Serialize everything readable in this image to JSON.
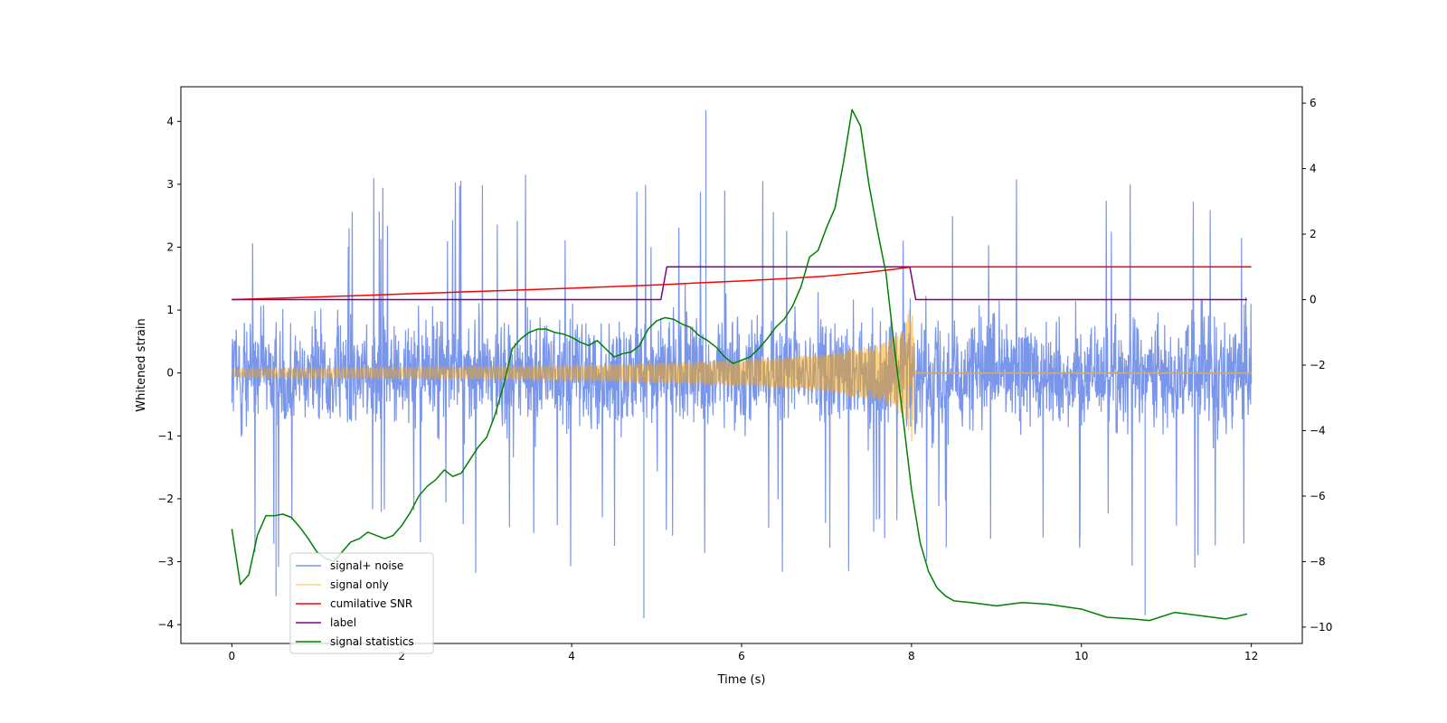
{
  "chart_data": {
    "type": "line",
    "title": "",
    "xlabel": "Time (s)",
    "ylabel_left": "Whitened strain",
    "ylabel_right": "",
    "xlim": [
      -0.6,
      12.6
    ],
    "ylim_left": [
      -4.3,
      4.55
    ],
    "ylim_right": [
      -10.5,
      6.5
    ],
    "x_ticks": [
      0,
      2,
      4,
      6,
      8,
      10,
      12
    ],
    "x_tick_labels": [
      "0",
      "2",
      "4",
      "6",
      "8",
      "10",
      "12"
    ],
    "y_left_ticks": [
      -4,
      -3,
      -2,
      -1,
      0,
      1,
      2,
      3,
      4
    ],
    "y_left_tick_labels": [
      "−4",
      "−3",
      "−2",
      "−1",
      "0",
      "1",
      "2",
      "3",
      "4"
    ],
    "y_right_ticks": [
      -10,
      -8,
      -6,
      -4,
      -2,
      0,
      2,
      4,
      6
    ],
    "y_right_tick_labels": [
      "−10",
      "−8",
      "−6",
      "−4",
      "−2",
      "0",
      "2",
      "4",
      "6"
    ],
    "legend_position": "bottom-left",
    "series": [
      {
        "name": "signal+ noise",
        "axis": "left",
        "color": "#4169e1",
        "opacity": 0.7,
        "kind": "noise",
        "x_range": [
          0,
          12
        ],
        "typical_range": [
          -2.0,
          2.0
        ],
        "extremes": [
          [
            1.38,
            2.3
          ],
          [
            5.58,
            4.18
          ],
          [
            4.85,
            -3.9
          ],
          [
            10.75,
            -3.85
          ],
          [
            0.52,
            -3.55
          ]
        ]
      },
      {
        "name": "signal only",
        "axis": "left",
        "color": "#ffa500",
        "opacity": 0.5,
        "kind": "chirp",
        "t_merge": 8.0,
        "amplitude_envelope": [
          [
            0,
            0.07
          ],
          [
            2,
            0.09
          ],
          [
            4,
            0.12
          ],
          [
            6,
            0.2
          ],
          [
            7,
            0.3
          ],
          [
            7.6,
            0.45
          ],
          [
            7.9,
            0.65
          ],
          [
            8.0,
            1.15
          ],
          [
            8.05,
            0.0
          ],
          [
            12,
            0.0
          ]
        ]
      },
      {
        "name": "cumilative SNR",
        "axis": "right",
        "color": "#ff0000",
        "x": [
          0,
          1,
          2,
          3,
          4,
          5,
          6,
          6.5,
          7,
          7.5,
          7.8,
          8.0,
          8.01,
          12
        ],
        "values": [
          0,
          0.08,
          0.17,
          0.26,
          0.35,
          0.45,
          0.57,
          0.64,
          0.72,
          0.84,
          0.93,
          1.0,
          1.0,
          1.0
        ]
      },
      {
        "name": "label",
        "axis": "right",
        "color": "#800080",
        "x": [
          0,
          5.05,
          5.12,
          7.98,
          8.05,
          11.95
        ],
        "values": [
          0,
          0,
          1,
          1,
          0,
          0
        ]
      },
      {
        "name": "signal statistics",
        "axis": "right",
        "color": "#008000",
        "x": [
          0,
          0.1,
          0.2,
          0.3,
          0.4,
          0.5,
          0.6,
          0.7,
          0.8,
          0.9,
          1.0,
          1.1,
          1.2,
          1.3,
          1.4,
          1.5,
          1.6,
          1.7,
          1.8,
          1.9,
          2.0,
          2.1,
          2.2,
          2.3,
          2.4,
          2.5,
          2.6,
          2.7,
          2.8,
          2.9,
          3.0,
          3.1,
          3.2,
          3.3,
          3.4,
          3.5,
          3.6,
          3.7,
          3.8,
          3.9,
          4.0,
          4.1,
          4.2,
          4.3,
          4.4,
          4.5,
          4.6,
          4.7,
          4.8,
          4.9,
          5.0,
          5.1,
          5.2,
          5.3,
          5.4,
          5.5,
          5.6,
          5.7,
          5.8,
          5.9,
          6.0,
          6.1,
          6.2,
          6.3,
          6.4,
          6.5,
          6.6,
          6.7,
          6.8,
          6.9,
          7.0,
          7.1,
          7.2,
          7.3,
          7.4,
          7.5,
          7.6,
          7.7,
          7.8,
          7.9,
          8.0,
          8.1,
          8.2,
          8.3,
          8.4,
          8.5,
          8.7,
          9.0,
          9.3,
          9.6,
          10.0,
          10.3,
          10.6,
          10.8,
          11.1,
          11.4,
          11.7,
          11.95
        ],
        "values": [
          -7.0,
          -8.7,
          -8.4,
          -7.2,
          -6.6,
          -6.6,
          -6.55,
          -6.65,
          -6.95,
          -7.3,
          -7.7,
          -7.9,
          -8.0,
          -7.7,
          -7.4,
          -7.3,
          -7.1,
          -7.2,
          -7.3,
          -7.2,
          -6.9,
          -6.5,
          -6.0,
          -5.7,
          -5.5,
          -5.2,
          -5.4,
          -5.3,
          -4.9,
          -4.5,
          -4.2,
          -3.5,
          -2.6,
          -1.5,
          -1.2,
          -1.0,
          -0.9,
          -0.9,
          -1.0,
          -1.05,
          -1.15,
          -1.3,
          -1.4,
          -1.25,
          -1.5,
          -1.75,
          -1.65,
          -1.6,
          -1.4,
          -0.9,
          -0.65,
          -0.55,
          -0.6,
          -0.75,
          -0.85,
          -1.1,
          -1.25,
          -1.45,
          -1.75,
          -1.95,
          -1.85,
          -1.75,
          -1.5,
          -1.2,
          -0.85,
          -0.6,
          -0.2,
          0.4,
          1.3,
          1.5,
          2.2,
          2.8,
          4.2,
          5.8,
          5.3,
          3.5,
          2.1,
          0.8,
          -1.5,
          -3.6,
          -5.8,
          -7.4,
          -8.3,
          -8.8,
          -9.05,
          -9.2,
          -9.25,
          -9.35,
          -9.25,
          -9.3,
          -9.45,
          -9.7,
          -9.75,
          -9.8,
          -9.55,
          -9.65,
          -9.75,
          -9.6
        ]
      }
    ]
  }
}
